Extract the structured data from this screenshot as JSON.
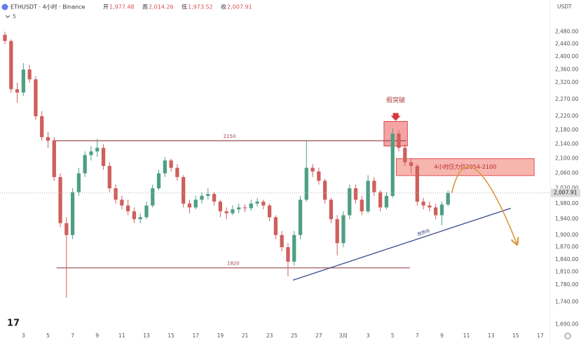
{
  "chart_data": {
    "type": "candlestick",
    "header": {
      "symbol": "ETHUSDT · 4小时 · Binance",
      "open_label": "开",
      "open": "1,977.48",
      "high_label": "高",
      "high": "2,014.26",
      "low_label": "低",
      "low": "1,973.52",
      "close_label": "收",
      "close": "2,007.91",
      "indicators": "5",
      "currency": "USDT"
    },
    "log_scale": true,
    "grid": false,
    "up_color": "#4e9f84",
    "down_color": "#cf5f5c",
    "xlim": [
      1.1,
      45.8
    ],
    "xticks": [
      3,
      5,
      7,
      9,
      11,
      13,
      15,
      17,
      19,
      21,
      23,
      25,
      27,
      {
        "value": 29,
        "label": "3月"
      },
      {
        "value": 31,
        "label": "3"
      },
      {
        "value": 33,
        "label": "5"
      },
      {
        "value": 35,
        "label": "7"
      },
      {
        "value": 37,
        "label": "9"
      },
      {
        "value": 39,
        "label": "11"
      },
      {
        "value": 41,
        "label": "13"
      },
      {
        "value": 43,
        "label": "15"
      },
      {
        "value": 45,
        "label": "17"
      }
    ],
    "ylim": [
      1680,
      2515
    ],
    "yticks": [
      {
        "value": 2480,
        "label": "2,480.00"
      },
      {
        "value": 2440,
        "label": "2,440.00"
      },
      {
        "value": 2400,
        "label": "2,400.00"
      },
      {
        "value": 2360,
        "label": "2,360.00"
      },
      {
        "value": 2320,
        "label": "2,320.00"
      },
      {
        "value": 2270,
        "label": "2,270.00"
      },
      {
        "value": 2220,
        "label": "2,220.00"
      },
      {
        "value": 2180,
        "label": "2,180.00"
      },
      {
        "value": 2140,
        "label": "2,140.00"
      },
      {
        "value": 2100,
        "label": "2,100.00"
      },
      {
        "value": 2060,
        "label": "2,060.00"
      },
      {
        "value": 2020,
        "label": "2,020.00"
      },
      {
        "value": 1980,
        "label": "1,980.00"
      },
      {
        "value": 1940,
        "label": "1,940.00"
      },
      {
        "value": 1900,
        "label": "1,900.00"
      },
      {
        "value": 1870,
        "label": "1,870.00"
      },
      {
        "value": 1840,
        "label": "1,840.00"
      },
      {
        "value": 1810,
        "label": "1,810.00"
      },
      {
        "value": 1780,
        "label": "1,780.00"
      },
      {
        "value": 1740,
        "label": "1,740.00"
      },
      {
        "value": 1690,
        "label": "1,690.00"
      }
    ],
    "x": [
      1.5,
      2,
      2.5,
      3,
      3.5,
      4,
      4.5,
      5,
      5.5,
      6,
      6.5,
      7,
      7.5,
      8,
      8.5,
      9,
      9.5,
      10,
      10.5,
      11,
      11.5,
      12,
      12.5,
      13,
      13.5,
      14,
      14.5,
      15,
      15.5,
      16,
      16.5,
      17,
      17.5,
      18,
      18.5,
      19,
      19.5,
      20,
      20.5,
      21,
      21.5,
      22,
      22.5,
      23,
      23.5,
      24,
      24.5,
      25,
      25.5,
      26,
      26.5,
      27,
      27.5,
      28,
      28.5,
      29,
      29.5,
      30,
      30.5,
      31,
      31.5,
      32,
      32.5,
      33,
      33.5,
      34,
      34.5,
      35,
      35.5,
      36,
      36.5,
      37,
      37.5
    ],
    "open": [
      2470,
      2450,
      2300,
      2290,
      2360,
      2330,
      2220,
      2160,
      2150,
      2050,
      1930,
      1900,
      2010,
      2060,
      2110,
      2120,
      2130,
      2080,
      2020,
      1990,
      1975,
      1960,
      1940,
      1945,
      1975,
      2020,
      2060,
      2095,
      2075,
      2050,
      1980,
      1970,
      1990,
      2000,
      2005,
      1985,
      1960,
      1955,
      1965,
      1970,
      1968,
      1980,
      1985,
      1975,
      1945,
      1900,
      1870,
      1835,
      1900,
      1990,
      2075,
      2065,
      2040,
      1990,
      1940,
      1880,
      1950,
      2020,
      1990,
      1960,
      2040,
      2010,
      1970,
      2000,
      2170,
      2130,
      2090,
      2080,
      1985,
      1975,
      1970,
      1950,
      1977.48
    ],
    "high": [
      2480,
      2455,
      2320,
      2380,
      2375,
      2340,
      2235,
      2175,
      2160,
      2060,
      1945,
      2020,
      2075,
      2120,
      2135,
      2155,
      2140,
      2090,
      2030,
      2000,
      1990,
      1970,
      1955,
      1985,
      2030,
      2070,
      2105,
      2100,
      2085,
      2055,
      1990,
      2000,
      2010,
      2020,
      2010,
      1990,
      1970,
      1975,
      1980,
      1978,
      1990,
      1995,
      1990,
      1980,
      1950,
      1910,
      1880,
      1910,
      2000,
      2150,
      2085,
      2075,
      2045,
      1995,
      1950,
      1960,
      2030,
      2030,
      2000,
      2055,
      2050,
      2015,
      2010,
      2185,
      2180,
      2140,
      2100,
      2085,
      1995,
      1985,
      1980,
      1985,
      2014.26
    ],
    "low": [
      2440,
      2290,
      2260,
      2280,
      2320,
      2210,
      2150,
      2130,
      2040,
      1920,
      1750,
      1890,
      2000,
      2050,
      2095,
      2105,
      2070,
      2010,
      1980,
      1965,
      1950,
      1930,
      1930,
      1940,
      1970,
      2015,
      2050,
      2065,
      2040,
      1970,
      1955,
      1965,
      1980,
      1990,
      1975,
      1945,
      1940,
      1950,
      1955,
      1958,
      1962,
      1972,
      1965,
      1935,
      1890,
      1860,
      1800,
      1825,
      1890,
      1985,
      2050,
      2030,
      1980,
      1930,
      1850,
      1870,
      1940,
      1980,
      1950,
      1955,
      2000,
      1960,
      1965,
      1995,
      2120,
      2080,
      2060,
      1975,
      1965,
      1960,
      1940,
      1925,
      1973.52
    ],
    "close": [
      2450,
      2300,
      2290,
      2360,
      2330,
      2220,
      2160,
      2150,
      2050,
      1930,
      1900,
      2010,
      2060,
      2110,
      2120,
      2130,
      2080,
      2020,
      1990,
      1975,
      1960,
      1940,
      1945,
      1975,
      2020,
      2060,
      2095,
      2075,
      2050,
      1980,
      1970,
      1990,
      2000,
      2005,
      1985,
      1960,
      1955,
      1965,
      1970,
      1968,
      1980,
      1985,
      1975,
      1945,
      1900,
      1870,
      1835,
      1900,
      1990,
      2075,
      2065,
      2040,
      1990,
      1940,
      1880,
      1950,
      2020,
      1990,
      1960,
      2040,
      2010,
      1970,
      2000,
      2170,
      2130,
      2090,
      2080,
      1985,
      1975,
      1970,
      1950,
      1977.48,
      2007.91
    ],
    "last_price": {
      "value": 2007.91,
      "label": "2,007.91"
    },
    "levels": [
      {
        "label": 2150,
        "x": [
          5.4,
          34.1
        ]
      },
      {
        "label": 1820,
        "x": [
          5.7,
          34.4
        ]
      }
    ],
    "breakout_box": {
      "label": "假突破",
      "x": [
        32.3,
        34.2
      ],
      "y": [
        2135,
        2205
      ]
    },
    "zone": {
      "label": "4小时压力位2054-2100",
      "x": [
        33.3,
        44.5
      ],
      "y": [
        2054,
        2100
      ]
    },
    "trendline": {
      "label": "趋势线",
      "x": [
        24.9,
        42.6
      ],
      "y": [
        1791,
        1968
      ]
    },
    "projection": {
      "x": [
        37.8,
        39.8,
        43.1
      ],
      "y": [
        2007,
        2069,
        1878
      ]
    }
  }
}
